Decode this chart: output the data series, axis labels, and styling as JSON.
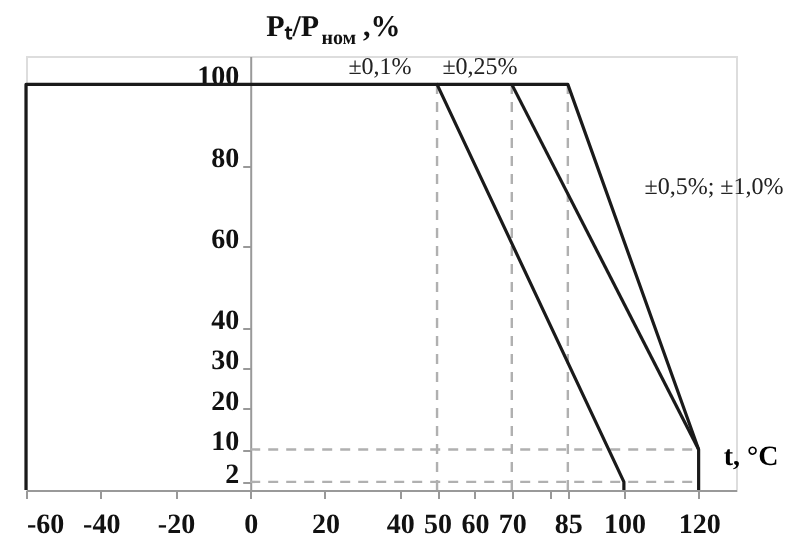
{
  "chart_data": {
    "type": "line",
    "xlabel": "t, °C",
    "ylabel": "Pₜ/P$_{ном}$ ,%",
    "xlim": [
      -60,
      130
    ],
    "ylim": [
      0,
      107
    ],
    "xticks": [
      -60,
      -40,
      -20,
      0,
      20,
      40,
      50,
      60,
      70,
      {
        "value": 80,
        "label": null
      },
      85,
      100,
      120
    ],
    "yticks": [
      2,
      10,
      20,
      30,
      40,
      60,
      80,
      100
    ],
    "grid": false,
    "marker": "none",
    "line_style": "solid",
    "series": [
      {
        "color": "#1a1a1a",
        "x": [
          -60,
          -60,
          50,
          100,
          100
        ],
        "values": [
          0,
          100,
          100,
          2,
          0
        ]
      },
      {
        "color": "#1a1a1a",
        "x": [
          50,
          85,
          120,
          120
        ],
        "values": [
          100,
          100,
          10,
          0
        ]
      },
      {
        "color": "#1a1a1a",
        "x": [
          70,
          120
        ],
        "values": [
          100,
          10
        ]
      }
    ],
    "ref_lines": [
      {
        "axis": "x",
        "value": 50,
        "color": "#b0b0b0",
        "line_style": "dashed"
      },
      {
        "axis": "x",
        "value": 70,
        "color": "#b0b0b0",
        "line_style": "dashed"
      },
      {
        "axis": "x",
        "value": 85,
        "color": "#b0b0b0",
        "line_style": "dashed"
      },
      {
        "axis": "y",
        "value": 10,
        "color": "#b0b0b0",
        "line_style": "dashed"
      },
      {
        "axis": "y",
        "value": 2,
        "color": "#b0b0b0",
        "line_style": "dashed"
      }
    ],
    "annotations": [
      "±0,1%",
      "±0,25%",
      "±0,5%; ±1,0%"
    ]
  }
}
